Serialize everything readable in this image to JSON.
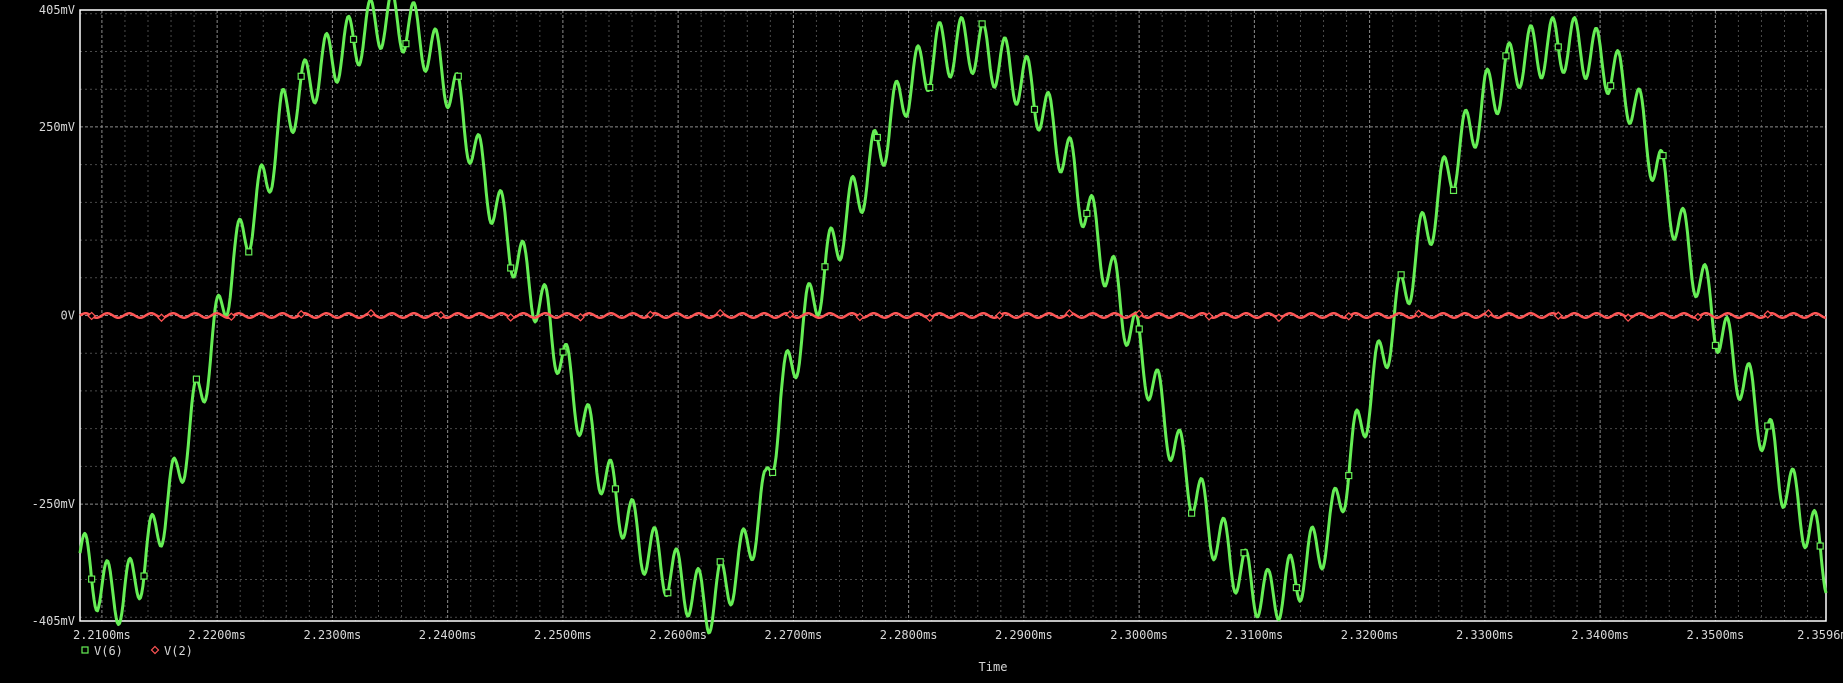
{
  "colors": {
    "background": "#000000",
    "grid_major": "#8c8c8c",
    "grid_minor": "#4a4a4a",
    "axis_text": "#d8d8d8",
    "frame": "#ffffff"
  },
  "chart_data": {
    "type": "line",
    "title": "",
    "xlabel": "Time",
    "ylabel": "",
    "x_unit": "ms",
    "y_unit": "mV",
    "xlim": [
      2.2081,
      2.3596
    ],
    "ylim": [
      -405,
      405
    ],
    "x_tick_values": [
      2.21,
      2.22,
      2.23,
      2.24,
      2.25,
      2.26,
      2.27,
      2.28,
      2.29,
      2.3,
      2.31,
      2.32,
      2.33,
      2.34,
      2.35,
      2.3596
    ],
    "x_tick_labels": [
      "2.2100ms",
      "2.2200ms",
      "2.2300ms",
      "2.2400ms",
      "2.2500ms",
      "2.2600ms",
      "2.2700ms",
      "2.2800ms",
      "2.2900ms",
      "2.3000ms",
      "2.3100ms",
      "2.3200ms",
      "2.3300ms",
      "2.3400ms",
      "2.3500ms",
      "2.3596ms"
    ],
    "y_tick_values": [
      405,
      250,
      0,
      -250,
      -405
    ],
    "y_tick_labels": [
      "405mV",
      "250mV",
      "0V",
      "-250mV",
      "-405mV"
    ],
    "grid": true,
    "legend_position": "bottom-left",
    "series": [
      {
        "name": "V(6)",
        "color": "#66ee55",
        "marker": "square",
        "x": [
          2.2081,
          2.2096,
          2.2118,
          2.2136,
          2.2164,
          2.2189,
          2.2214,
          2.2243,
          2.2256,
          2.229,
          2.2319,
          2.2345,
          2.2355,
          2.2365,
          2.2379,
          2.2395,
          2.2412,
          2.2431,
          2.2459,
          2.2487,
          2.2511,
          2.2538,
          2.2567,
          2.2597,
          2.2626,
          2.2654,
          2.2676,
          2.2689,
          2.2712,
          2.2743,
          2.2774,
          2.2797,
          2.2825,
          2.2854,
          2.288,
          2.2907,
          2.2936,
          2.2962,
          2.2983,
          2.3008,
          2.3034,
          2.3062,
          2.309,
          2.3112,
          2.3136,
          2.3167,
          2.3189,
          2.3218,
          2.3243,
          2.327,
          2.33,
          2.333,
          2.3353,
          2.3368,
          2.3384,
          2.3405,
          2.3429,
          2.3451,
          2.3477,
          2.3504,
          2.3532,
          2.3558,
          2.3583,
          2.3596
        ],
        "values": [
          -315,
          -355,
          -375,
          -330,
          -220,
          -80,
          70,
          180,
          260,
          330,
          365,
          395,
          390,
          385,
          365,
          330,
          270,
          185,
          80,
          -5,
          -110,
          -220,
          -300,
          -345,
          -385,
          -330,
          -240,
          -110,
          0,
          120,
          220,
          300,
          350,
          360,
          335,
          300,
          215,
          110,
          20,
          -75,
          -185,
          -280,
          -345,
          -375,
          -350,
          -280,
          -160,
          -20,
          90,
          195,
          285,
          340,
          355,
          360,
          355,
          335,
          285,
          190,
          85,
          -20,
          -110,
          -215,
          -285,
          -330
        ]
      },
      {
        "name": "V(2)",
        "color": "#ff5555",
        "marker": "diamond",
        "x": [
          2.2081,
          2.3596
        ],
        "values": [
          0,
          0
        ]
      }
    ]
  }
}
